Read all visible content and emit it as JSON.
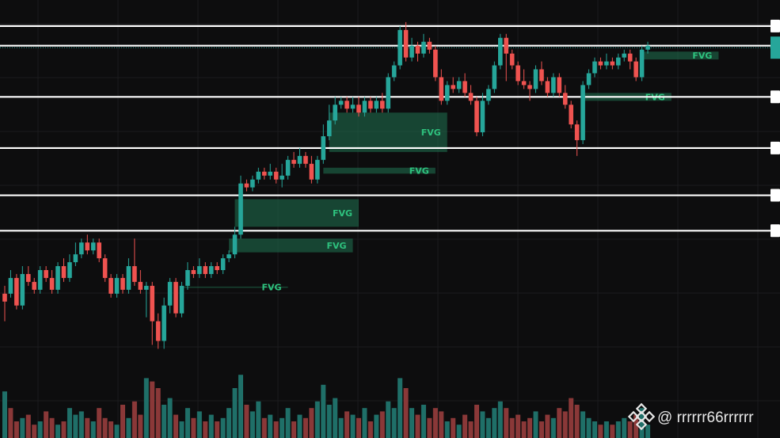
{
  "colors": {
    "background": "#0d0d0e",
    "grid": "#1b1c1e",
    "bull": "#26a69a",
    "bear": "#ef5350",
    "bull_volume": "#1f6f68",
    "bear_volume": "#8a3838",
    "fvg_fill": "#1e6b4c",
    "fvg_text": "#2ec27e",
    "level_line": "#ffffff",
    "price_marker": "#26a69a"
  },
  "chart_data": {
    "type": "candlestick",
    "y_range": [
      0,
      100
    ],
    "x_range": [
      0,
      116
    ],
    "grid": true,
    "horizontal_levels": [
      95,
      90,
      77,
      64,
      52,
      43
    ],
    "current_price_line": 89.5,
    "candles": [
      [
        0,
        25,
        27,
        20,
        29,
        "bear"
      ],
      [
        1,
        27,
        31,
        26,
        33,
        "bull"
      ],
      [
        2,
        31,
        24,
        23,
        32,
        "bear"
      ],
      [
        3,
        24,
        32,
        23,
        34,
        "bull"
      ],
      [
        4,
        32,
        30,
        29,
        34,
        "bear"
      ],
      [
        5,
        30,
        28,
        27,
        31,
        "bear"
      ],
      [
        6,
        28,
        33,
        27,
        34,
        "bull"
      ],
      [
        7,
        33,
        31,
        30,
        34,
        "bear"
      ],
      [
        8,
        31,
        28,
        27,
        33,
        "bear"
      ],
      [
        9,
        28,
        34,
        27,
        35,
        "bull"
      ],
      [
        10,
        34,
        31,
        30,
        36,
        "bear"
      ],
      [
        11,
        31,
        35,
        30,
        37,
        "bull"
      ],
      [
        12,
        35,
        37,
        34,
        40,
        "bull"
      ],
      [
        13,
        37,
        40,
        36,
        41,
        "bull"
      ],
      [
        14,
        40,
        38,
        37,
        42,
        "bear"
      ],
      [
        15,
        38,
        40,
        37,
        41,
        "bull"
      ],
      [
        16,
        40,
        36,
        35,
        41,
        "bear"
      ],
      [
        17,
        36,
        31,
        30,
        37,
        "bear"
      ],
      [
        18,
        31,
        27,
        26,
        32,
        "bear"
      ],
      [
        19,
        27,
        31,
        26,
        32,
        "bull"
      ],
      [
        20,
        31,
        28,
        27,
        32,
        "bear"
      ],
      [
        21,
        28,
        34,
        27,
        36,
        "bull"
      ],
      [
        22,
        34,
        30,
        29,
        41,
        "bear"
      ],
      [
        23,
        30,
        28,
        27,
        33,
        "bear"
      ],
      [
        24,
        28,
        29,
        21,
        30,
        "bull"
      ],
      [
        25,
        29,
        20,
        14,
        30,
        "bear"
      ],
      [
        26,
        20,
        15,
        13,
        22,
        "bear"
      ],
      [
        27,
        15,
        24,
        13,
        26,
        "bull"
      ],
      [
        28,
        24,
        30,
        22,
        31,
        "bull"
      ],
      [
        29,
        30,
        22,
        21,
        31,
        "bear"
      ],
      [
        30,
        22,
        29,
        21,
        30,
        "bull"
      ],
      [
        31,
        29,
        33,
        28,
        35,
        "bull"
      ],
      [
        32,
        33,
        32,
        31,
        34,
        "bear"
      ],
      [
        33,
        32,
        34,
        31,
        36,
        "bull"
      ],
      [
        34,
        34,
        32,
        31,
        35,
        "bear"
      ],
      [
        35,
        32,
        34,
        31,
        35,
        "bull"
      ],
      [
        36,
        34,
        33,
        32,
        35,
        "bear"
      ],
      [
        37,
        33,
        36,
        32,
        37,
        "bull"
      ],
      [
        38,
        36,
        37,
        35,
        38,
        "bull"
      ],
      [
        39,
        37,
        42,
        36,
        44,
        "bull"
      ],
      [
        40,
        42,
        55,
        41,
        57,
        "bull"
      ],
      [
        41,
        55,
        54,
        53,
        56,
        "bear"
      ],
      [
        42,
        54,
        56,
        53,
        57,
        "bull"
      ],
      [
        43,
        56,
        58,
        55,
        59,
        "bull"
      ],
      [
        44,
        58,
        57,
        56,
        59,
        "bear"
      ],
      [
        45,
        57,
        58,
        56,
        60,
        "bull"
      ],
      [
        46,
        58,
        56,
        55,
        59,
        "bear"
      ],
      [
        47,
        56,
        57,
        54,
        60,
        "bull"
      ],
      [
        48,
        57,
        61,
        56,
        62,
        "bull"
      ],
      [
        49,
        61,
        60,
        59,
        63,
        "bear"
      ],
      [
        50,
        60,
        62,
        59,
        64,
        "bull"
      ],
      [
        51,
        62,
        60,
        59,
        63,
        "bear"
      ],
      [
        52,
        60,
        56,
        55,
        62,
        "bear"
      ],
      [
        53,
        56,
        61,
        55,
        62,
        "bull"
      ],
      [
        54,
        61,
        67,
        60,
        70,
        "bull"
      ],
      [
        55,
        67,
        71,
        66,
        75,
        "bull"
      ],
      [
        56,
        71,
        75,
        70,
        77,
        "bull"
      ],
      [
        57,
        75,
        76,
        74,
        77,
        "bull"
      ],
      [
        58,
        76,
        74,
        73,
        77,
        "bear"
      ],
      [
        59,
        74,
        75,
        73,
        77,
        "bull"
      ],
      [
        60,
        75,
        73,
        72,
        77,
        "bear"
      ],
      [
        61,
        73,
        76,
        72,
        77,
        "bull"
      ],
      [
        62,
        76,
        74,
        73,
        77,
        "bear"
      ],
      [
        63,
        74,
        76,
        73,
        77,
        "bull"
      ],
      [
        64,
        76,
        74,
        73,
        78,
        "bear"
      ],
      [
        65,
        74,
        82,
        73,
        83,
        "bull"
      ],
      [
        66,
        82,
        85,
        81,
        86,
        "bull"
      ],
      [
        67,
        85,
        94,
        84,
        95,
        "bull"
      ],
      [
        68,
        94,
        87,
        86,
        96,
        "bear"
      ],
      [
        69,
        87,
        90,
        86,
        92,
        "bull"
      ],
      [
        70,
        90,
        88,
        86,
        91,
        "bear"
      ],
      [
        71,
        88,
        91,
        87,
        93,
        "bull"
      ],
      [
        72,
        91,
        89,
        88,
        92,
        "bear"
      ],
      [
        73,
        89,
        82,
        81,
        90,
        "bear"
      ],
      [
        74,
        82,
        76,
        75,
        84,
        "bear"
      ],
      [
        75,
        76,
        80,
        75,
        81,
        "bull"
      ],
      [
        76,
        80,
        79,
        78,
        82,
        "bear"
      ],
      [
        77,
        79,
        81,
        78,
        82,
        "bull"
      ],
      [
        78,
        81,
        78,
        77,
        83,
        "bear"
      ],
      [
        79,
        78,
        76,
        75,
        80,
        "bear"
      ],
      [
        80,
        76,
        68,
        67,
        77,
        "bear"
      ],
      [
        81,
        68,
        76,
        67,
        78,
        "bull"
      ],
      [
        82,
        76,
        79,
        75,
        80,
        "bull"
      ],
      [
        83,
        79,
        85,
        78,
        86,
        "bull"
      ],
      [
        84,
        85,
        92,
        84,
        93,
        "bull"
      ],
      [
        85,
        92,
        88,
        81,
        93,
        "bear"
      ],
      [
        86,
        88,
        85,
        84,
        89,
        "bear"
      ],
      [
        87,
        85,
        81,
        80,
        86,
        "bear"
      ],
      [
        88,
        81,
        80,
        79,
        84,
        "bear"
      ],
      [
        89,
        80,
        79,
        76,
        81,
        "bear"
      ],
      [
        90,
        79,
        84,
        78,
        85,
        "bull"
      ],
      [
        91,
        84,
        81,
        80,
        86,
        "bear"
      ],
      [
        92,
        81,
        78,
        77,
        82,
        "bear"
      ],
      [
        93,
        78,
        82,
        77,
        83,
        "bull"
      ],
      [
        94,
        82,
        78,
        77,
        83,
        "bear"
      ],
      [
        95,
        78,
        75,
        74,
        80,
        "bear"
      ],
      [
        96,
        75,
        70,
        69,
        76,
        "bear"
      ],
      [
        97,
        70,
        66,
        62,
        71,
        "bear"
      ],
      [
        98,
        66,
        80,
        65,
        81,
        "bull"
      ],
      [
        99,
        80,
        83,
        79,
        84,
        "bull"
      ],
      [
        100,
        83,
        86,
        82,
        87,
        "bull"
      ],
      [
        101,
        86,
        85,
        84,
        87,
        "bear"
      ],
      [
        102,
        85,
        86,
        84,
        88,
        "bull"
      ],
      [
        103,
        86,
        85,
        84,
        87,
        "bear"
      ],
      [
        104,
        85,
        87,
        84,
        88,
        "bull"
      ],
      [
        105,
        87,
        88,
        86,
        89,
        "bull"
      ],
      [
        106,
        88,
        86,
        84,
        89,
        "bear"
      ],
      [
        107,
        86,
        82,
        81,
        87,
        "bear"
      ],
      [
        108,
        82,
        89,
        81,
        90,
        "bull"
      ],
      [
        109,
        89,
        90,
        88,
        91,
        "bull"
      ]
    ],
    "fvg_zones": [
      {
        "label": "FVG",
        "x_start": 108,
        "x_end": 121,
        "y_low": 86.5,
        "y_high": 88.5
      },
      {
        "label": "FVG",
        "x_start": 98,
        "x_end": 113,
        "y_low": 76,
        "y_high": 78
      },
      {
        "label": "FVG",
        "x_start": 55,
        "x_end": 75,
        "y_low": 63,
        "y_high": 73
      },
      {
        "label": "FVG",
        "x_start": 54,
        "x_end": 73,
        "y_low": 57.5,
        "y_high": 59
      },
      {
        "label": "FVG",
        "x_start": 39,
        "x_end": 60,
        "y_low": 44,
        "y_high": 51
      },
      {
        "label": "FVG",
        "x_start": 38,
        "x_end": 59,
        "y_low": 37.5,
        "y_high": 41
      },
      {
        "label": "FVG",
        "x_start": 30,
        "x_end": 48,
        "y_low": 28.6,
        "y_high": 28.8
      }
    ],
    "volume": [
      [
        0,
        14,
        "bull"
      ],
      [
        1,
        9,
        "bear"
      ],
      [
        2,
        5,
        "bear"
      ],
      [
        3,
        6,
        "bull"
      ],
      [
        4,
        7,
        "bear"
      ],
      [
        5,
        4,
        "bear"
      ],
      [
        6,
        5,
        "bull"
      ],
      [
        7,
        8,
        "bear"
      ],
      [
        8,
        6,
        "bear"
      ],
      [
        9,
        4,
        "bull"
      ],
      [
        10,
        5,
        "bear"
      ],
      [
        11,
        9,
        "bull"
      ],
      [
        12,
        7,
        "bull"
      ],
      [
        13,
        8,
        "bull"
      ],
      [
        14,
        6,
        "bear"
      ],
      [
        15,
        5,
        "bull"
      ],
      [
        16,
        9,
        "bear"
      ],
      [
        17,
        6,
        "bear"
      ],
      [
        18,
        5,
        "bear"
      ],
      [
        19,
        4,
        "bull"
      ],
      [
        20,
        10,
        "bear"
      ],
      [
        21,
        6,
        "bull"
      ],
      [
        22,
        11,
        "bear"
      ],
      [
        23,
        7,
        "bear"
      ],
      [
        24,
        18,
        "bull"
      ],
      [
        25,
        17,
        "bear"
      ],
      [
        26,
        15,
        "bear"
      ],
      [
        27,
        10,
        "bull"
      ],
      [
        28,
        12,
        "bull"
      ],
      [
        29,
        7,
        "bear"
      ],
      [
        30,
        5,
        "bull"
      ],
      [
        31,
        9,
        "bull"
      ],
      [
        32,
        6,
        "bear"
      ],
      [
        33,
        8,
        "bull"
      ],
      [
        34,
        5,
        "bear"
      ],
      [
        35,
        7,
        "bull"
      ],
      [
        36,
        5,
        "bear"
      ],
      [
        37,
        6,
        "bull"
      ],
      [
        38,
        9,
        "bull"
      ],
      [
        39,
        15,
        "bull"
      ],
      [
        40,
        19,
        "bull"
      ],
      [
        41,
        10,
        "bear"
      ],
      [
        42,
        8,
        "bull"
      ],
      [
        43,
        11,
        "bull"
      ],
      [
        44,
        6,
        "bear"
      ],
      [
        45,
        7,
        "bull"
      ],
      [
        46,
        5,
        "bear"
      ],
      [
        47,
        6,
        "bull"
      ],
      [
        48,
        9,
        "bull"
      ],
      [
        49,
        5,
        "bear"
      ],
      [
        50,
        7,
        "bull"
      ],
      [
        51,
        6,
        "bear"
      ],
      [
        52,
        9,
        "bear"
      ],
      [
        53,
        11,
        "bull"
      ],
      [
        54,
        16,
        "bull"
      ],
      [
        55,
        10,
        "bull"
      ],
      [
        56,
        12,
        "bull"
      ],
      [
        57,
        6,
        "bull"
      ],
      [
        58,
        8,
        "bear"
      ],
      [
        59,
        7,
        "bull"
      ],
      [
        60,
        6,
        "bear"
      ],
      [
        61,
        9,
        "bull"
      ],
      [
        62,
        5,
        "bear"
      ],
      [
        63,
        7,
        "bull"
      ],
      [
        64,
        8,
        "bear"
      ],
      [
        65,
        11,
        "bull"
      ],
      [
        66,
        9,
        "bull"
      ],
      [
        67,
        18,
        "bull"
      ],
      [
        68,
        15,
        "bear"
      ],
      [
        69,
        9,
        "bull"
      ],
      [
        70,
        7,
        "bear"
      ],
      [
        71,
        10,
        "bull"
      ],
      [
        72,
        6,
        "bear"
      ],
      [
        73,
        9,
        "bear"
      ],
      [
        74,
        8,
        "bear"
      ],
      [
        75,
        5,
        "bull"
      ],
      [
        76,
        6,
        "bear"
      ],
      [
        77,
        4,
        "bull"
      ],
      [
        78,
        7,
        "bear"
      ],
      [
        79,
        5,
        "bear"
      ],
      [
        80,
        10,
        "bear"
      ],
      [
        81,
        8,
        "bull"
      ],
      [
        82,
        6,
        "bull"
      ],
      [
        83,
        9,
        "bull"
      ],
      [
        84,
        11,
        "bull"
      ],
      [
        85,
        9,
        "bear"
      ],
      [
        86,
        6,
        "bear"
      ],
      [
        87,
        7,
        "bear"
      ],
      [
        88,
        5,
        "bear"
      ],
      [
        89,
        6,
        "bear"
      ],
      [
        90,
        8,
        "bull"
      ],
      [
        91,
        5,
        "bear"
      ],
      [
        92,
        7,
        "bear"
      ],
      [
        93,
        6,
        "bull"
      ],
      [
        94,
        9,
        "bear"
      ],
      [
        95,
        8,
        "bear"
      ],
      [
        96,
        12,
        "bear"
      ],
      [
        97,
        10,
        "bear"
      ],
      [
        98,
        8,
        "bull"
      ],
      [
        99,
        6,
        "bull"
      ],
      [
        100,
        5,
        "bull"
      ],
      [
        101,
        4,
        "bear"
      ],
      [
        102,
        5,
        "bull"
      ],
      [
        103,
        4,
        "bear"
      ],
      [
        104,
        5,
        "bull"
      ],
      [
        105,
        6,
        "bull"
      ],
      [
        106,
        5,
        "bear"
      ],
      [
        107,
        7,
        "bear"
      ],
      [
        108,
        9,
        "bull"
      ],
      [
        109,
        4,
        "bull"
      ]
    ]
  },
  "watermark": {
    "handle": "@ rrrrrr66rrrrrr",
    "icon": "binance-logo-icon"
  }
}
